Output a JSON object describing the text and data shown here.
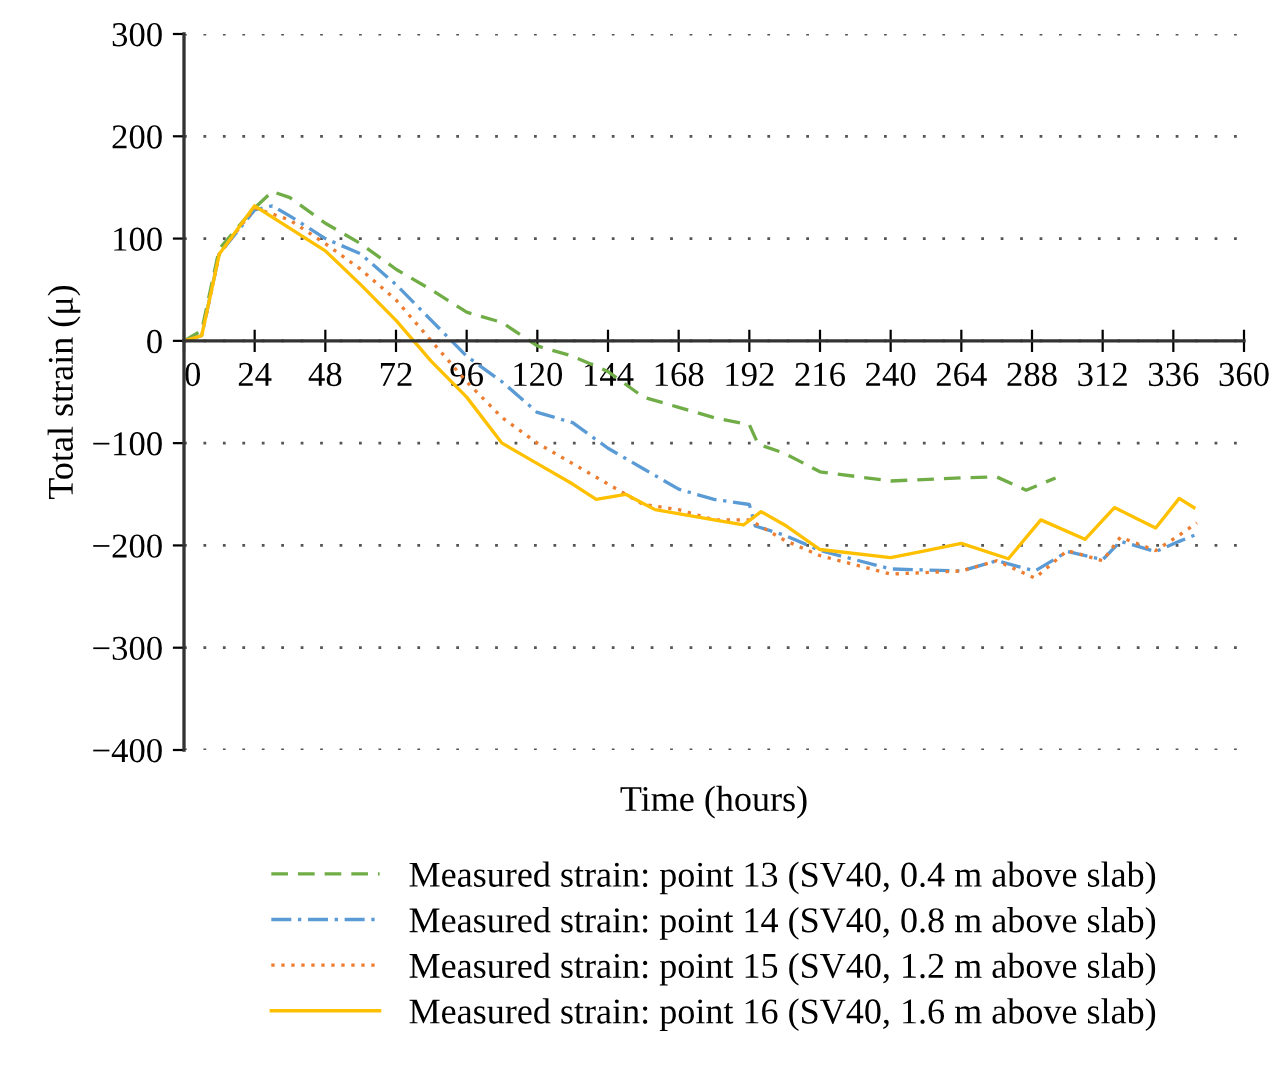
{
  "chart_data": {
    "type": "line",
    "xlabel": "Time (hours)",
    "ylabel": "Total strain (μ)",
    "xlim": [
      0,
      360
    ],
    "ylim": [
      -400,
      300
    ],
    "xticks": [
      0,
      24,
      48,
      72,
      96,
      120,
      144,
      168,
      192,
      216,
      240,
      264,
      288,
      312,
      336,
      360
    ],
    "yticks": [
      -400,
      -300,
      -200,
      -100,
      0,
      100,
      200,
      300
    ],
    "grid": "y",
    "legend": "bottom",
    "series": [
      {
        "name": "Measured strain: point 13 (SV40, 0.4 m above slab)",
        "color": "#70ad47",
        "line_style": "dashed",
        "x": [
          0,
          6,
          12,
          24,
          30,
          36,
          48,
          60,
          72,
          84,
          96,
          108,
          120,
          132,
          144,
          156,
          168,
          180,
          192,
          195,
          204,
          216,
          240,
          264,
          276,
          286,
          296
        ],
        "values": [
          0,
          10,
          90,
          130,
          146,
          140,
          115,
          95,
          70,
          50,
          28,
          18,
          -5,
          -15,
          -30,
          -55,
          -65,
          -75,
          -82,
          -101,
          -110,
          -128,
          -137,
          -134,
          -133,
          -146,
          -134
        ]
      },
      {
        "name": "Measured strain: point 14 (SV40, 0.8 m above slab)",
        "color": "#5b9bd5",
        "line_style": "dashdot",
        "x": [
          0,
          6,
          12,
          24,
          30,
          36,
          48,
          60,
          72,
          84,
          96,
          108,
          120,
          132,
          144,
          156,
          168,
          180,
          192,
          194,
          204,
          216,
          240,
          264,
          276,
          289,
          300,
          312,
          318,
          330,
          338,
          344
        ],
        "values": [
          0,
          5,
          85,
          128,
          132,
          122,
          100,
          85,
          55,
          20,
          -15,
          -40,
          -70,
          -80,
          -105,
          -125,
          -145,
          -155,
          -160,
          -181,
          -190,
          -205,
          -223,
          -225,
          -215,
          -225,
          -206,
          -214,
          -196,
          -206,
          -196,
          -189
        ]
      },
      {
        "name": "Measured strain: point 15 (SV40, 1.2 m above slab)",
        "color": "#ed7d31",
        "line_style": "dotted",
        "x": [
          0,
          6,
          12,
          24,
          36,
          48,
          60,
          72,
          84,
          96,
          108,
          120,
          132,
          144,
          156,
          168,
          180,
          192,
          204,
          216,
          240,
          264,
          276,
          289,
          300,
          312,
          318,
          330,
          338,
          344
        ],
        "values": [
          0,
          5,
          85,
          130,
          118,
          95,
          70,
          40,
          0,
          -40,
          -75,
          -100,
          -120,
          -140,
          -160,
          -165,
          -175,
          -175,
          -195,
          -210,
          -228,
          -225,
          -215,
          -232,
          -205,
          -215,
          -192,
          -205,
          -190,
          -178
        ]
      },
      {
        "name": "Measured strain: point 16 (SV40, 1.6 m above slab)",
        "color": "#ffc000",
        "line_style": "solid",
        "x": [
          0,
          6,
          12,
          24,
          36,
          48,
          60,
          72,
          84,
          96,
          108,
          120,
          132,
          140,
          150,
          160,
          180,
          190,
          196,
          204,
          216,
          240,
          252,
          264,
          280,
          291,
          306,
          316,
          330,
          338,
          343
        ],
        "values": [
          0,
          5,
          85,
          132,
          110,
          88,
          55,
          20,
          -20,
          -55,
          -100,
          -120,
          -140,
          -155,
          -150,
          -165,
          -175,
          -180,
          -167,
          -180,
          -204,
          -212,
          -205,
          -198,
          -213,
          -175,
          -194,
          -163,
          -183,
          -154,
          -163
        ]
      }
    ]
  }
}
